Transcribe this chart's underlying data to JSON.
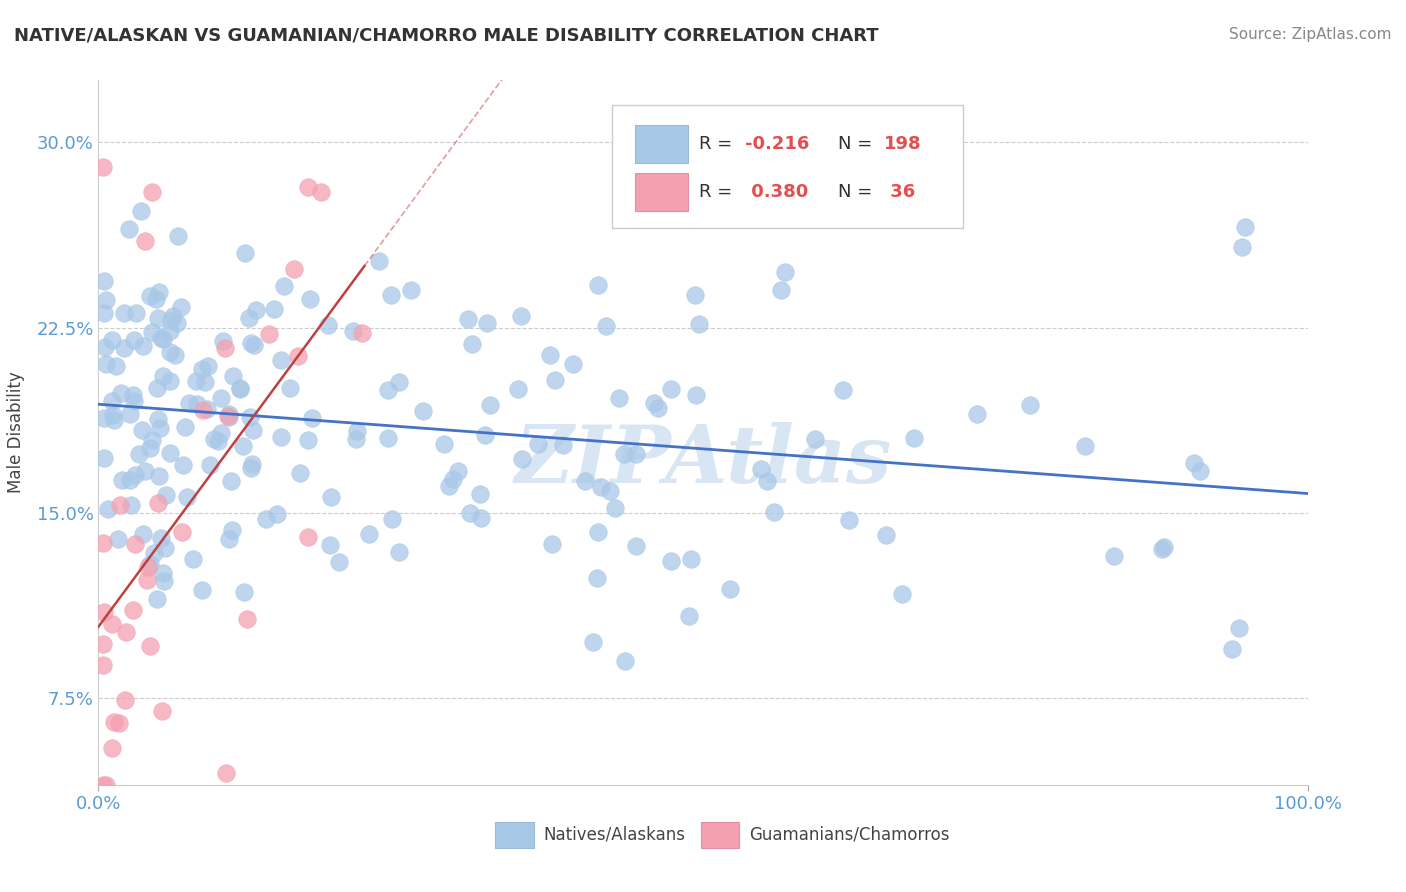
{
  "title": "NATIVE/ALASKAN VS GUAMANIAN/CHAMORRO MALE DISABILITY CORRELATION CHART",
  "source": "Source: ZipAtlas.com",
  "ylabel": "Male Disability",
  "yticks": [
    0.075,
    0.15,
    0.225,
    0.3
  ],
  "ytick_labels": [
    "7.5%",
    "15.0%",
    "22.5%",
    "30.0%"
  ],
  "xtick_labels": [
    "0.0%",
    "100.0%"
  ],
  "xmin": 0.0,
  "xmax": 1.0,
  "ymin": 0.04,
  "ymax": 0.325,
  "watermark": "ZIPAtlas",
  "color_blue": "#A8C8E8",
  "color_pink": "#F4A0B0",
  "trendline_blue": "#4472C4",
  "trendline_pink": "#C04040",
  "legend_r1_label": "R = ",
  "legend_r1_val": "-0.216",
  "legend_n1_label": "N = ",
  "legend_n1_val": "198",
  "legend_r2_label": "R = ",
  "legend_r2_val": " 0.380",
  "legend_n2_label": "N = ",
  "legend_n2_val": " 36",
  "legend_color_r": "#E05050",
  "legend_color_n": "#E05050"
}
